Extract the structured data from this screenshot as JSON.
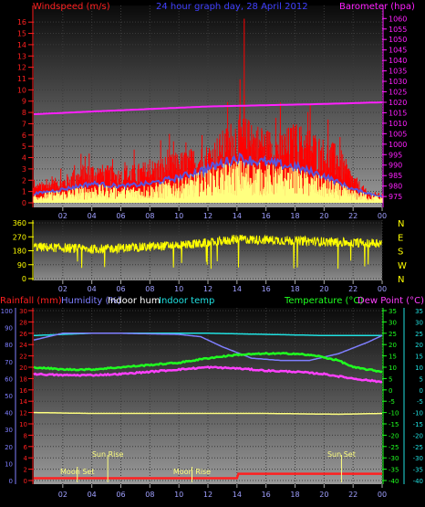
{
  "panel1": {
    "title_left": "Windspeed (m/s)",
    "title_center": "24 hour graph day, 28 April 2012",
    "title_right": "Barometer (hpa)"
  },
  "panel3": {
    "labels": [
      {
        "text": "Rainfall (mm)",
        "color": "#ff2020"
      },
      {
        "text": "Humidity (%)",
        "color": "#7f7fff"
      },
      {
        "text": "Indoor hum",
        "color": "#ffffff"
      },
      {
        "text": "Indoor temp",
        "color": "#20e0e0"
      }
    ],
    "labels_right": [
      {
        "text": "Temperature (°C)",
        "color": "#20ff20"
      },
      {
        "text": "Dew Point (°C)",
        "color": "#ff40ff"
      }
    ],
    "events": [
      "Moon Set",
      "Sun Rise",
      "Moon Rise",
      "Sun Set"
    ]
  },
  "chart_data": [
    {
      "type": "line",
      "name": "wind-barometer",
      "x_ticks": [
        "02",
        "04",
        "06",
        "08",
        "10",
        "12",
        "14",
        "16",
        "18",
        "20",
        "22",
        "00"
      ],
      "y_left_ticks": [
        "0",
        "1",
        "2",
        "3",
        "4",
        "5",
        "6",
        "7",
        "8",
        "9",
        "10",
        "11",
        "12",
        "13",
        "14",
        "15",
        "16"
      ],
      "y_right_ticks": [
        "975",
        "980",
        "985",
        "990",
        "995",
        "1000",
        "1005",
        "1010",
        "1015",
        "1020",
        "1025",
        "1030",
        "1035",
        "1040",
        "1045",
        "1050",
        "1055",
        "1060"
      ],
      "ylim_left": [
        0,
        16.5
      ],
      "ylim_right": [
        972,
        1061
      ],
      "series": [
        {
          "color": "#ff0000",
          "envelope": [
            [
              0,
              1.4
            ],
            [
              2,
              2.0
            ],
            [
              4,
              3.0
            ],
            [
              6,
              2.6
            ],
            [
              8,
              3.2
            ],
            [
              10,
              3.8
            ],
            [
              12,
              4.4
            ],
            [
              13,
              5.4
            ],
            [
              14,
              6.6
            ],
            [
              15,
              6.2
            ],
            [
              16,
              5.6
            ],
            [
              17,
              5.3
            ],
            [
              18,
              6.0
            ],
            [
              19,
              5.6
            ],
            [
              20,
              4.8
            ],
            [
              21,
              4.3
            ],
            [
              22,
              2.2
            ],
            [
              23,
              0.9
            ],
            [
              24,
              0.7
            ]
          ],
          "peak": [
            14.5,
            16.3
          ]
        },
        {
          "color": "#ffff80",
          "envelope": [
            [
              0,
              0.6
            ],
            [
              2,
              0.9
            ],
            [
              4,
              1.3
            ],
            [
              6,
              1.1
            ],
            [
              8,
              1.3
            ],
            [
              10,
              1.7
            ],
            [
              12,
              2.3
            ],
            [
              14,
              3.0
            ],
            [
              16,
              2.7
            ],
            [
              18,
              2.4
            ],
            [
              20,
              1.8
            ],
            [
              22,
              0.9
            ],
            [
              24,
              0.4
            ]
          ]
        },
        {
          "color": "#ff20ff",
          "values_right": [
            [
              0,
              1014.3
            ],
            [
              4,
              1015.6
            ],
            [
              8,
              1016.8
            ],
            [
              12,
              1018.0
            ],
            [
              16,
              1018.6
            ],
            [
              20,
              1019.2
            ],
            [
              24,
              1020.0
            ]
          ]
        }
      ]
    },
    {
      "type": "scatter",
      "name": "wind-direction",
      "x_ticks": [
        "02",
        "04",
        "06",
        "08",
        "10",
        "12",
        "14",
        "16",
        "18",
        "20",
        "22",
        "00"
      ],
      "y_ticks": [
        "0",
        "90",
        "180",
        "270",
        "360"
      ],
      "y_right_ticks": [
        "N",
        "W",
        "S",
        "E",
        "N"
      ],
      "ylim": [
        0,
        360
      ],
      "series": [
        {
          "color": "#ffff00",
          "trend": [
            [
              0,
              205
            ],
            [
              4,
              190
            ],
            [
              8,
              205
            ],
            [
              12,
              230
            ],
            [
              14,
              255
            ],
            [
              18,
              245
            ],
            [
              22,
              232
            ],
            [
              24,
              230
            ]
          ]
        }
      ]
    },
    {
      "type": "line",
      "name": "temperature-humidity",
      "x_ticks": [
        "02",
        "04",
        "06",
        "08",
        "10",
        "12",
        "14",
        "16",
        "18",
        "20",
        "22",
        "00"
      ],
      "y_rain_ticks": [
        "0",
        "2",
        "4",
        "6",
        "8",
        "10",
        "12",
        "14",
        "16",
        "18",
        "20",
        "22",
        "24",
        "26",
        "28",
        "30"
      ],
      "y_hum_ticks": [
        "0",
        "10",
        "20",
        "30",
        "40",
        "50",
        "60",
        "70",
        "80",
        "90",
        "100"
      ],
      "y_temp_ticks": [
        "-40",
        "-35",
        "-30",
        "-25",
        "-20",
        "-15",
        "-10",
        "-5",
        "0",
        "5",
        "10",
        "15",
        "20",
        "25",
        "30",
        "35"
      ],
      "ylim_temp": [
        -40,
        35
      ],
      "ylim_hum": [
        0,
        100
      ],
      "series": [
        {
          "color": "#20e0e0",
          "axis": "temp",
          "values": [
            [
              0,
              24
            ],
            [
              4,
              25
            ],
            [
              8,
              25
            ],
            [
              12,
              25
            ],
            [
              16,
              24.5
            ],
            [
              20,
              24
            ],
            [
              24,
              24
            ]
          ]
        },
        {
          "color": "#7f7fff",
          "axis": "temp",
          "values": [
            [
              0,
              22
            ],
            [
              2,
              25
            ],
            [
              6,
              25
            ],
            [
              10,
              24.5
            ],
            [
              11.5,
              23.5
            ],
            [
              13,
              19
            ],
            [
              15,
              14
            ],
            [
              17,
              13
            ],
            [
              19,
              13
            ],
            [
              21,
              16
            ],
            [
              23,
              21
            ],
            [
              24,
              24
            ]
          ]
        },
        {
          "color": "#20ff20",
          "axis": "temp",
          "values": [
            [
              0,
              10
            ],
            [
              2,
              9
            ],
            [
              4,
              9
            ],
            [
              6,
              10
            ],
            [
              8,
              11
            ],
            [
              10,
              12
            ],
            [
              12,
              14
            ],
            [
              14,
              15.5
            ],
            [
              16,
              16
            ],
            [
              18,
              16
            ],
            [
              19.5,
              15
            ],
            [
              21,
              13
            ],
            [
              22,
              10
            ],
            [
              24,
              8
            ]
          ]
        },
        {
          "color": "#ff40ff",
          "axis": "temp",
          "values": [
            [
              0,
              7
            ],
            [
              2,
              6.5
            ],
            [
              4,
              6.5
            ],
            [
              6,
              7
            ],
            [
              8,
              8
            ],
            [
              10,
              9
            ],
            [
              12,
              10
            ],
            [
              14,
              9.5
            ],
            [
              16,
              8.5
            ],
            [
              18,
              8
            ],
            [
              20,
              7
            ],
            [
              22,
              5
            ],
            [
              24,
              3.5
            ]
          ]
        },
        {
          "color": "#ffff80",
          "axis": "hum",
          "values": [
            [
              0,
              40
            ],
            [
              4,
              39.5
            ],
            [
              10,
              39.5
            ],
            [
              16,
              39.5
            ],
            [
              21,
              39
            ],
            [
              24,
              39.5
            ]
          ]
        },
        {
          "color": "#ff2020",
          "axis": "rain",
          "values": [
            [
              0,
              0.4
            ],
            [
              14,
              0.4
            ],
            [
              14,
              1.2
            ],
            [
              24,
              1.2
            ]
          ]
        }
      ],
      "events": [
        {
          "label": "Moon Set",
          "x": 3
        },
        {
          "label": "Sun Rise",
          "x": 5.1
        },
        {
          "label": "Moon Rise",
          "x": 10.9
        },
        {
          "label": "Sun Set",
          "x": 21.2
        }
      ]
    }
  ]
}
